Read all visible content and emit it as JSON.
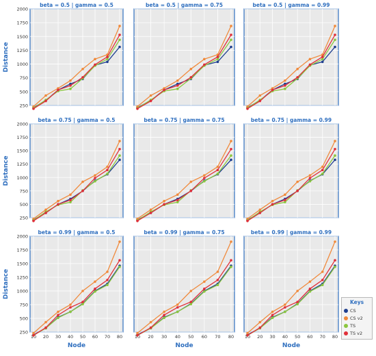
{
  "chart_data": {
    "type": "line",
    "x": [
      10,
      20,
      30,
      40,
      50,
      60,
      70,
      80
    ],
    "xlabel": "Node",
    "ylabel": "Distance",
    "ylim": [
      250,
      2000
    ],
    "yticks": [
      250,
      500,
      750,
      1000,
      1250,
      1500,
      1750,
      2000
    ],
    "xticks": [
      10,
      20,
      30,
      40,
      50,
      60,
      70,
      80
    ],
    "grid": true,
    "legend": {
      "title": "Keys",
      "position": "bottom-right"
    },
    "series_styles": [
      {
        "name": "CS",
        "color": "#1f3f8f"
      },
      {
        "name": "CS v2",
        "color": "#f08a3c"
      },
      {
        "name": "TS",
        "color": "#8cc63f"
      },
      {
        "name": "TS v2",
        "color": "#e0303a"
      }
    ],
    "panels": [
      {
        "title": "beta = 0.5 | gamma = 0.5",
        "series": [
          {
            "name": "CS",
            "values": [
              210,
              340,
              530,
              640,
              730,
              980,
              1040,
              1310
            ]
          },
          {
            "name": "CS v2",
            "values": [
              230,
              430,
              560,
              700,
              910,
              1090,
              1170,
              1690
            ]
          },
          {
            "name": "TS",
            "values": [
              200,
              350,
              510,
              550,
              740,
              970,
              1090,
              1440
            ]
          },
          {
            "name": "TS v2",
            "values": [
              190,
              330,
              530,
              610,
              760,
              990,
              1130,
              1530
            ]
          }
        ]
      },
      {
        "title": "beta = 0.5 | gamma = 0.75",
        "series": [
          {
            "name": "CS",
            "values": [
              210,
              340,
              530,
              640,
              730,
              980,
              1040,
              1310
            ]
          },
          {
            "name": "CS v2",
            "values": [
              230,
              430,
              560,
              700,
              910,
              1090,
              1170,
              1690
            ]
          },
          {
            "name": "TS",
            "values": [
              200,
              350,
              510,
              550,
              740,
              970,
              1090,
              1440
            ]
          },
          {
            "name": "TS v2",
            "values": [
              190,
              330,
              530,
              610,
              760,
              990,
              1130,
              1530
            ]
          }
        ]
      },
      {
        "title": "beta = 0.5 | gamma = 0.99",
        "series": [
          {
            "name": "CS",
            "values": [
              210,
              340,
              530,
              640,
              730,
              980,
              1040,
              1310
            ]
          },
          {
            "name": "CS v2",
            "values": [
              230,
              430,
              560,
              700,
              910,
              1090,
              1170,
              1690
            ]
          },
          {
            "name": "TS",
            "values": [
              200,
              350,
              510,
              550,
              740,
              970,
              1090,
              1440
            ]
          },
          {
            "name": "TS v2",
            "values": [
              190,
              330,
              530,
              610,
              760,
              990,
              1130,
              1530
            ]
          }
        ]
      },
      {
        "title": "beta = 0.75 | gamma = 0.5",
        "series": [
          {
            "name": "CS",
            "values": [
              210,
              340,
              500,
              600,
              750,
              940,
              1060,
              1330
            ]
          },
          {
            "name": "CS v2",
            "values": [
              230,
              400,
              560,
              680,
              920,
              1040,
              1200,
              1680
            ]
          },
          {
            "name": "TS",
            "values": [
              200,
              360,
              490,
              540,
              760,
              930,
              1070,
              1410
            ]
          },
          {
            "name": "TS v2",
            "values": [
              190,
              340,
              500,
              580,
              750,
              990,
              1140,
              1530
            ]
          }
        ]
      },
      {
        "title": "beta = 0.75 | gamma = 0.75",
        "series": [
          {
            "name": "CS",
            "values": [
              210,
              340,
              500,
              600,
              750,
              940,
              1060,
              1330
            ]
          },
          {
            "name": "CS v2",
            "values": [
              230,
              400,
              560,
              680,
              920,
              1040,
              1200,
              1680
            ]
          },
          {
            "name": "TS",
            "values": [
              200,
              360,
              490,
              540,
              760,
              930,
              1070,
              1410
            ]
          },
          {
            "name": "TS v2",
            "values": [
              190,
              340,
              500,
              580,
              750,
              990,
              1140,
              1530
            ]
          }
        ]
      },
      {
        "title": "beta = 0.75 | gamma = 0.99",
        "series": [
          {
            "name": "CS",
            "values": [
              210,
              340,
              500,
              600,
              750,
              940,
              1060,
              1330
            ]
          },
          {
            "name": "CS v2",
            "values": [
              230,
              400,
              560,
              680,
              920,
              1040,
              1200,
              1680
            ]
          },
          {
            "name": "TS",
            "values": [
              200,
              360,
              490,
              540,
              760,
              930,
              1070,
              1410
            ]
          },
          {
            "name": "TS v2",
            "values": [
              190,
              340,
              500,
              580,
              750,
              990,
              1140,
              1530
            ]
          }
        ]
      },
      {
        "title": "beta = 0.99 | gamma = 0.5",
        "series": [
          {
            "name": "CS",
            "values": [
              200,
              320,
              520,
              620,
              770,
              1000,
              1130,
              1460
            ]
          },
          {
            "name": "CS v2",
            "values": [
              230,
              430,
              620,
              750,
              1000,
              1170,
              1350,
              1900
            ]
          },
          {
            "name": "TS",
            "values": [
              190,
              320,
              510,
              620,
              760,
              990,
              1110,
              1440
            ]
          },
          {
            "name": "TS v2",
            "values": [
              190,
              330,
              560,
              700,
              800,
              1040,
              1200,
              1560
            ]
          }
        ]
      },
      {
        "title": "beta = 0.99 | gamma = 0.75",
        "series": [
          {
            "name": "CS",
            "values": [
              200,
              320,
              520,
              620,
              770,
              1000,
              1130,
              1460
            ]
          },
          {
            "name": "CS v2",
            "values": [
              230,
              430,
              620,
              750,
              1000,
              1170,
              1350,
              1900
            ]
          },
          {
            "name": "TS",
            "values": [
              190,
              320,
              510,
              620,
              760,
              990,
              1110,
              1440
            ]
          },
          {
            "name": "TS v2",
            "values": [
              190,
              330,
              560,
              700,
              800,
              1040,
              1200,
              1560
            ]
          }
        ]
      },
      {
        "title": "beta = 0.99 | gamma = 0.99",
        "series": [
          {
            "name": "CS",
            "values": [
              200,
              320,
              520,
              620,
              770,
              1000,
              1130,
              1460
            ]
          },
          {
            "name": "CS v2",
            "values": [
              230,
              430,
              620,
              750,
              1000,
              1170,
              1350,
              1900
            ]
          },
          {
            "name": "TS",
            "values": [
              190,
              320,
              510,
              620,
              760,
              990,
              1110,
              1440
            ]
          },
          {
            "name": "TS v2",
            "values": [
              190,
              330,
              560,
              700,
              800,
              1040,
              1200,
              1560
            ]
          }
        ]
      }
    ]
  }
}
